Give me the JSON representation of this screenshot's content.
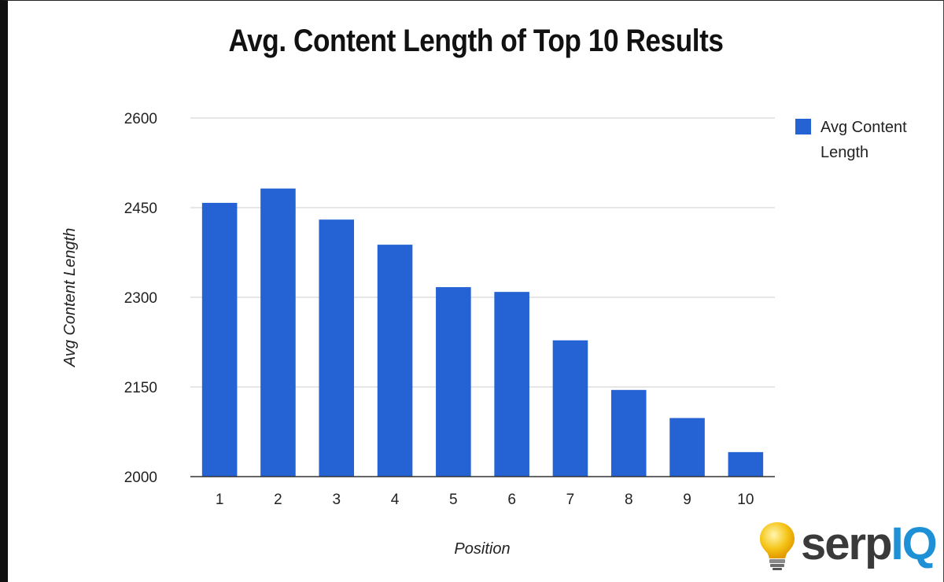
{
  "chart_data": {
    "type": "bar",
    "title": "Avg. Content Length of Top 10 Results",
    "xlabel": "Position",
    "ylabel": "Avg Content Length",
    "categories": [
      "1",
      "2",
      "3",
      "4",
      "5",
      "6",
      "7",
      "8",
      "9",
      "10"
    ],
    "series": [
      {
        "name": "Avg Content Length",
        "values": [
          2458,
          2482,
          2430,
          2388,
          2317,
          2309,
          2228,
          2145,
          2098,
          2041
        ]
      }
    ],
    "ylim": [
      2000,
      2600
    ],
    "yticks": [
      "2000",
      "2150",
      "2300",
      "2450",
      "2600"
    ],
    "grid": true,
    "legend": "right",
    "bar_color": "#2563d4"
  },
  "logo": {
    "part1": "serp",
    "part2": "IQ",
    "icon": "lightbulb-icon"
  }
}
